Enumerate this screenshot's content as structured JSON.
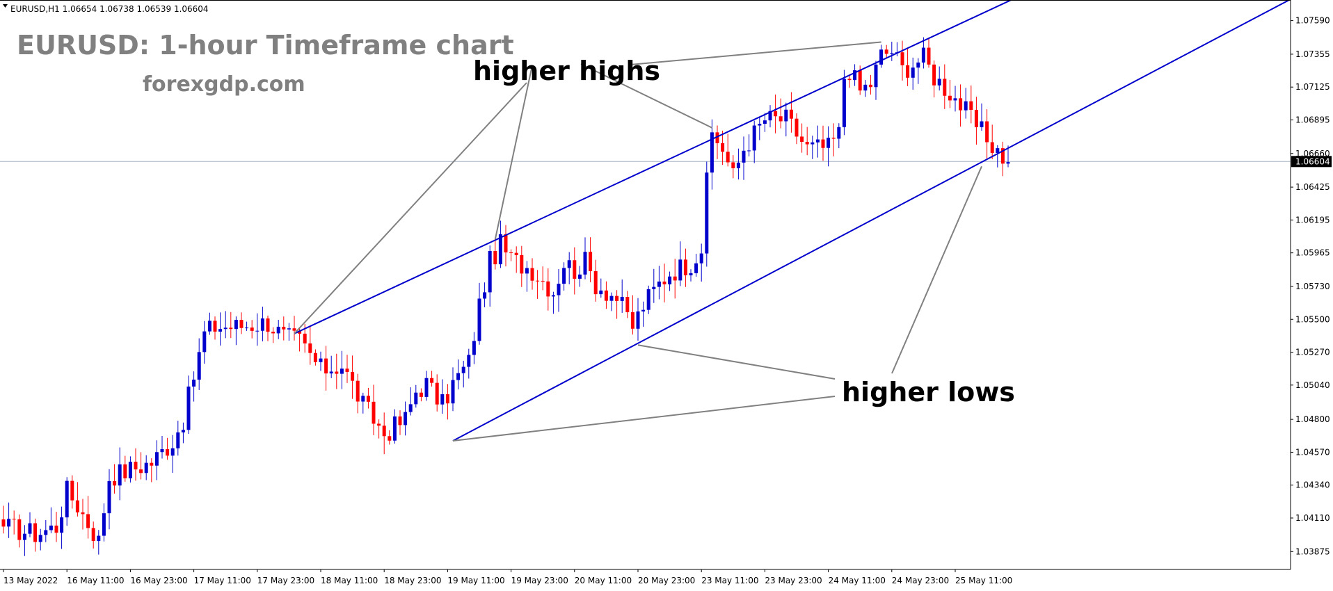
{
  "symbol_info": "EURUSD,H1  1.06654 1.06738 1.06539 1.06604",
  "title": "EURUSD: 1-hour Timeframe chart",
  "subtitle": "forexgdp.com",
  "colors": {
    "bull": "#0000cc",
    "bear": "#ff0000",
    "channel": "#0000cc",
    "pointer": "#808080",
    "price_line": "#a6b4c4",
    "axis": "#000000"
  },
  "chart_data": {
    "type": "candlestick",
    "ylim": [
      1.0375,
      1.077
    ],
    "y_ticks": [
      "1.07590",
      "1.07355",
      "1.07125",
      "1.06895",
      "1.06660",
      "1.06425",
      "1.06195",
      "1.05965",
      "1.05730",
      "1.05500",
      "1.05270",
      "1.05040",
      "1.04800",
      "1.04570",
      "1.04340",
      "1.04110",
      "1.03875"
    ],
    "x_ticks": [
      {
        "label": "13 May 2022",
        "bar": 0
      },
      {
        "label": "16 May 11:00",
        "bar": 12
      },
      {
        "label": "16 May 23:00",
        "bar": 24
      },
      {
        "label": "17 May 11:00",
        "bar": 36
      },
      {
        "label": "17 May 23:00",
        "bar": 48
      },
      {
        "label": "18 May 11:00",
        "bar": 60
      },
      {
        "label": "18 May 23:00",
        "bar": 72
      },
      {
        "label": "19 May 11:00",
        "bar": 84
      },
      {
        "label": "19 May 23:00",
        "bar": 96
      },
      {
        "label": "20 May 11:00",
        "bar": 108
      },
      {
        "label": "20 May 23:00",
        "bar": 120
      },
      {
        "label": "23 May 11:00",
        "bar": 132
      },
      {
        "label": "23 May 23:00",
        "bar": 144
      },
      {
        "label": "24 May 11:00",
        "bar": 156
      },
      {
        "label": "24 May 23:00",
        "bar": 168
      },
      {
        "label": "25 May 11:00",
        "bar": 180
      }
    ],
    "current_price": "1.06604",
    "close_anchors": [
      [
        0,
        1.0405
      ],
      [
        6,
        1.04
      ],
      [
        10,
        1.0405
      ],
      [
        12,
        1.043
      ],
      [
        14,
        1.042
      ],
      [
        18,
        1.0395
      ],
      [
        20,
        1.044
      ],
      [
        24,
        1.0445
      ],
      [
        28,
        1.045
      ],
      [
        32,
        1.0465
      ],
      [
        34,
        1.048
      ],
      [
        36,
        1.051
      ],
      [
        38,
        1.054
      ],
      [
        40,
        1.0545
      ],
      [
        44,
        1.0545
      ],
      [
        50,
        1.0548
      ],
      [
        53,
        1.0538
      ],
      [
        56,
        1.0535
      ],
      [
        60,
        1.0515
      ],
      [
        64,
        1.0518
      ],
      [
        68,
        1.049
      ],
      [
        72,
        1.047
      ],
      [
        76,
        1.048
      ],
      [
        78,
        1.05
      ],
      [
        80,
        1.0505
      ],
      [
        83,
        1.049
      ],
      [
        85,
        1.0505
      ],
      [
        88,
        1.052
      ],
      [
        90,
        1.056
      ],
      [
        92,
        1.059
      ],
      [
        94,
        1.0602
      ],
      [
        96,
        1.0592
      ],
      [
        100,
        1.0585
      ],
      [
        104,
        1.057
      ],
      [
        106,
        1.059
      ],
      [
        108,
        1.0585
      ],
      [
        110,
        1.059
      ],
      [
        112,
        1.0575
      ],
      [
        116,
        1.0565
      ],
      [
        119,
        1.0545
      ],
      [
        121,
        1.056
      ],
      [
        124,
        1.0575
      ],
      [
        126,
        1.0583
      ],
      [
        130,
        1.059
      ],
      [
        132,
        1.06
      ],
      [
        133,
        1.0645
      ],
      [
        134,
        1.068
      ],
      [
        136,
        1.067
      ],
      [
        138,
        1.065
      ],
      [
        140,
        1.067
      ],
      [
        144,
        1.069
      ],
      [
        148,
        1.069
      ],
      [
        152,
        1.067
      ],
      [
        156,
        1.067
      ],
      [
        158,
        1.068
      ],
      [
        159,
        1.072
      ],
      [
        160,
        1.0725
      ],
      [
        162,
        1.071
      ],
      [
        164,
        1.0715
      ],
      [
        166,
        1.0735
      ],
      [
        168,
        1.0738
      ],
      [
        170,
        1.0725
      ],
      [
        174,
        1.0733
      ],
      [
        176,
        1.072
      ],
      [
        180,
        1.0705
      ],
      [
        184,
        1.0685
      ],
      [
        188,
        1.0668
      ],
      [
        190,
        1.066
      ]
    ],
    "channel": {
      "upper": [
        [
          55,
          1.054
        ],
        [
          170,
          1.0738
        ]
      ],
      "lower": [
        [
          85,
          1.0465
        ],
        [
          185,
          1.066
        ]
      ]
    },
    "pointer_targets": {
      "higher_highs": [
        [
          55,
          1.054
        ],
        [
          93,
          1.0606
        ],
        [
          134,
          1.0684
        ],
        [
          166,
          1.0744
        ]
      ],
      "higher_lows": [
        [
          85,
          1.0465
        ],
        [
          120,
          1.0532
        ],
        [
          185,
          1.0657
        ]
      ]
    }
  },
  "annotations": {
    "higher_highs": "higher highs",
    "higher_lows": "higher lows"
  }
}
